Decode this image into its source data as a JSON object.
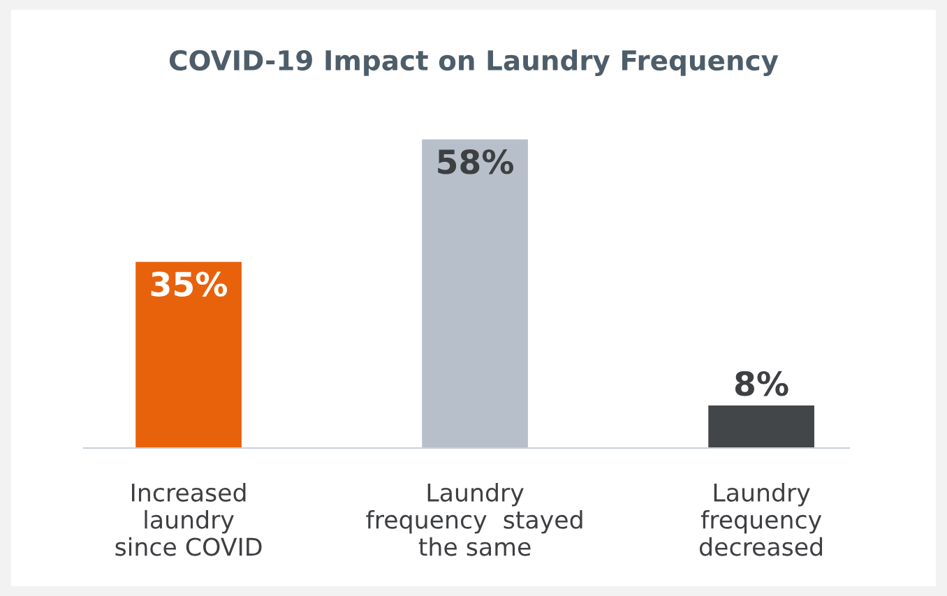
{
  "chart_data": {
    "type": "bar",
    "title": "COVID-19 Impact on Laundry Frequency",
    "categories": [
      "Increased\nlaundry\nsince COVID",
      "Laundry\nfrequency  stayed\nthe same",
      "Laundry\nfrequency\ndecreased"
    ],
    "values": [
      35,
      58,
      8
    ],
    "value_labels": [
      "35%",
      "58%",
      "8%"
    ],
    "colors": [
      "#e8620c",
      "#b7bfca",
      "#434649"
    ],
    "grid": false,
    "legend": false
  }
}
